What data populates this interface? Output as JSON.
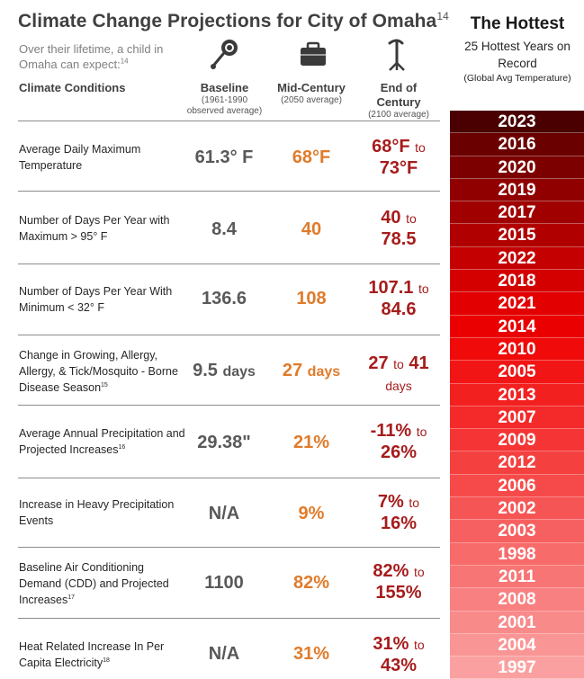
{
  "title": "Climate Change Projections for City of Omaha",
  "title_sup": "14",
  "intro": "Over their lifetime, a child in Omaha can expect:",
  "intro_sup": "14",
  "conditions_header": "Climate Conditions",
  "columns": {
    "baseline": {
      "label": "Baseline",
      "sub1": "(1961-1990",
      "sub2": "observed average)",
      "icon": "rattle-icon"
    },
    "mid": {
      "label": "Mid-Century",
      "sub1": "(2050 average)",
      "icon": "briefcase-icon"
    },
    "end": {
      "label1": "End of",
      "label2": "Century",
      "sub1": "(2100 average)",
      "icon": "cane-icon"
    }
  },
  "rows": [
    {
      "cond": "Average Daily Maximum Temperature",
      "sup": "",
      "base": "61.3° F",
      "base_unit": "",
      "mid": "68°F",
      "mid_unit": "",
      "end_a": "68°F",
      "to": "to",
      "end_b": "73°F",
      "end_unit": ""
    },
    {
      "cond": "Number of Days Per Year with Maximum > 95° F",
      "sup": "",
      "base": "8.4",
      "base_unit": "",
      "mid": "40",
      "mid_unit": "",
      "end_a": "40",
      "to": "to",
      "end_b": "78.5",
      "end_unit": ""
    },
    {
      "cond": "Number of Days Per Year With Minimum < 32° F",
      "sup": "",
      "base": "136.6",
      "base_unit": "",
      "mid": "108",
      "mid_unit": "",
      "end_a": "107.1",
      "to": "to",
      "end_b": "84.6",
      "end_unit": ""
    },
    {
      "cond": "Change in Growing, Allergy, Allergy, & Tick/Mosquito - Borne Disease Season",
      "sup": "15",
      "base": "9.5",
      "base_unit": "days",
      "mid": "27",
      "mid_unit": "days",
      "end_a": "27",
      "to": "to",
      "end_b": "41",
      "end_unit": "days"
    },
    {
      "cond": "Average Annual Precipitation and Projected Increases",
      "sup": "16",
      "base": "29.38\"",
      "base_unit": "",
      "mid": "21%",
      "mid_unit": "",
      "end_a": "-11%",
      "to": "to",
      "end_b": "26%",
      "end_unit": ""
    },
    {
      "cond": "Increase in Heavy Precipitation Events",
      "sup": "",
      "base": "N/A",
      "base_unit": "",
      "mid": "9%",
      "mid_unit": "",
      "end_a": "7%",
      "to": "to",
      "end_b": "16%",
      "end_unit": ""
    },
    {
      "cond": "Baseline Air Conditioning Demand (CDD) and Projected Increases",
      "sup": "17",
      "base": "1100",
      "base_unit": "",
      "mid": "82%",
      "mid_unit": "",
      "end_a": "82%",
      "to": "to",
      "end_b": "155%",
      "end_unit": ""
    },
    {
      "cond": "Heat Related Increase In Per Capita Electricity",
      "sup": "18",
      "base": "N/A",
      "base_unit": "",
      "mid": "31%",
      "mid_unit": "",
      "end_a": "31%",
      "to": "to",
      "end_b": "43%",
      "end_unit": ""
    }
  ],
  "hottest": {
    "title": "The Hottest",
    "subtitle": "25 Hottest Years on Record",
    "note": "(Global Avg Temperature)",
    "years": [
      "2023",
      "2016",
      "2020",
      "2019",
      "2017",
      "2015",
      "2022",
      "2018",
      "2021",
      "2014",
      "2010",
      "2005",
      "2013",
      "2007",
      "2009",
      "2012",
      "2006",
      "2002",
      "2003",
      "1998",
      "2011",
      "2008",
      "2001",
      "2004",
      "1997"
    ],
    "colors": [
      "#4a0000",
      "#6b0000",
      "#7d0000",
      "#900000",
      "#a00000",
      "#b00000",
      "#c40000",
      "#d40000",
      "#e20000",
      "#ea0000",
      "#f00a0a",
      "#f21515",
      "#f32020",
      "#f42a2a",
      "#f53535",
      "#f54040",
      "#f64a4a",
      "#f65555",
      "#f76060",
      "#f86b6b",
      "#f87575",
      "#f98080",
      "#f98a8a",
      "#fa9595",
      "#fba0a0"
    ]
  }
}
